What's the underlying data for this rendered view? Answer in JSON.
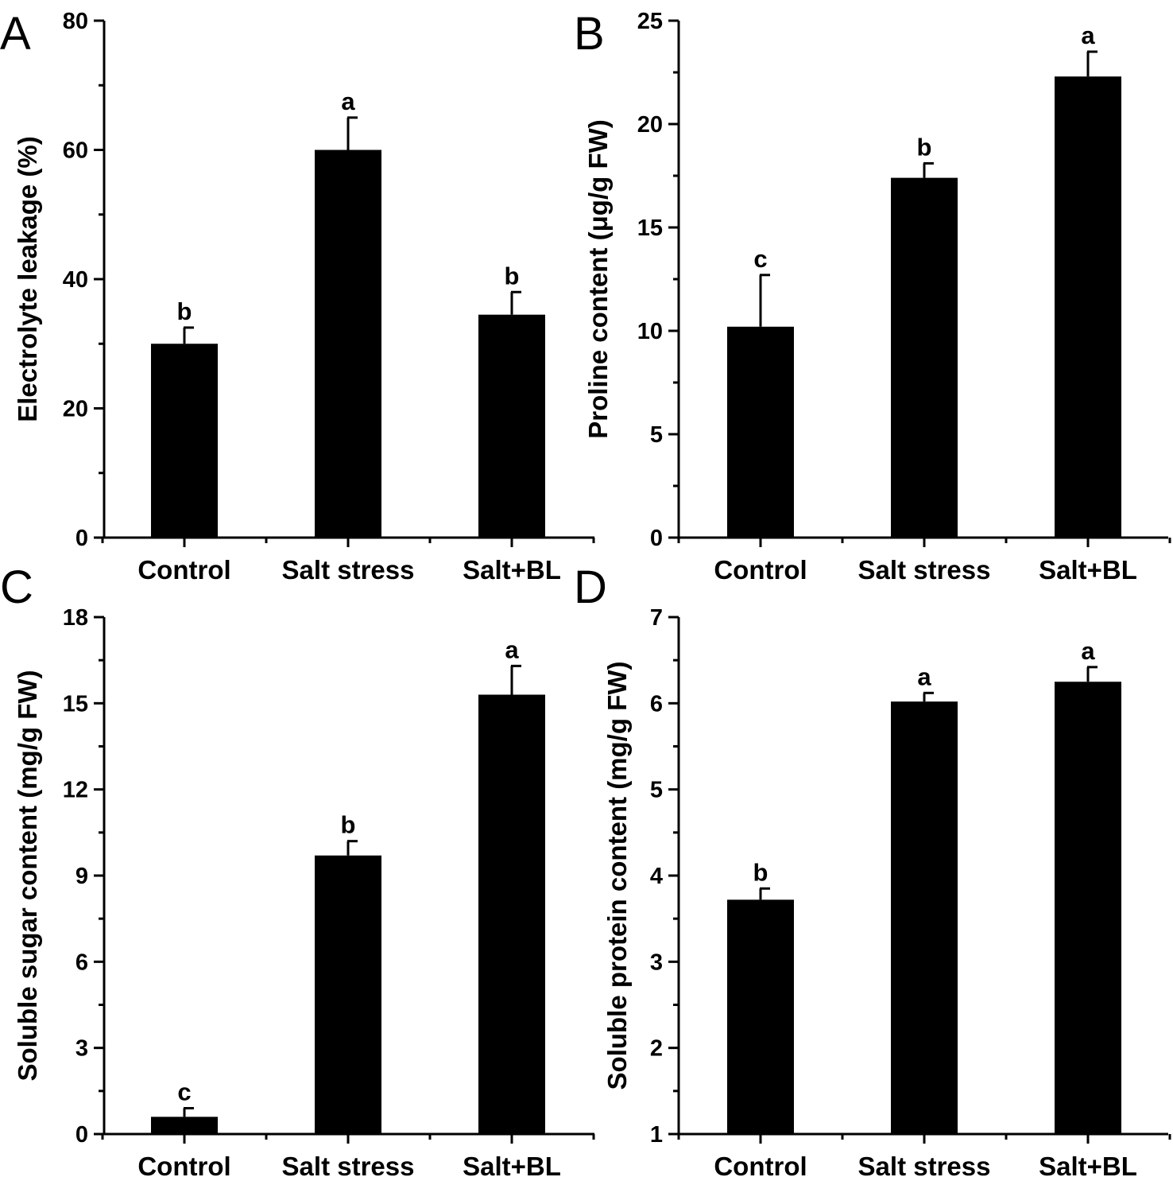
{
  "chart_data": [
    {
      "panel": "A",
      "type": "bar",
      "title": "",
      "xlabel": "",
      "ylabel": "Electrolyte leakage (%)",
      "categories": [
        "Control",
        "Salt stress",
        "Salt+BL"
      ],
      "values": [
        30,
        60,
        34.5
      ],
      "errors": [
        2.5,
        5,
        3.5
      ],
      "significance": [
        "b",
        "a",
        "b"
      ],
      "ylim": [
        0,
        80
      ],
      "yticks": [
        0,
        20,
        40,
        60,
        80
      ],
      "ytick_labels": [
        "0",
        "20",
        "40",
        "60",
        "80"
      ],
      "grid": false,
      "bar_color": "#000000"
    },
    {
      "panel": "B",
      "type": "bar",
      "title": "",
      "xlabel": "",
      "ylabel": "Proline content (μg/g FW)",
      "categories": [
        "Control",
        "Salt stress",
        "Salt+BL"
      ],
      "values": [
        10.2,
        17.4,
        22.3
      ],
      "errors": [
        2.5,
        0.7,
        1.2
      ],
      "significance": [
        "c",
        "b",
        "a"
      ],
      "ylim": [
        0,
        25
      ],
      "yticks": [
        0,
        5,
        10,
        15,
        20,
        25
      ],
      "ytick_labels": [
        "0",
        "5",
        "10",
        "15",
        "20",
        "25"
      ],
      "grid": false,
      "bar_color": "#000000"
    },
    {
      "panel": "C",
      "type": "bar",
      "title": "",
      "xlabel": "",
      "ylabel": "Soluble sugar content (mg/g FW)",
      "categories": [
        "Control",
        "Salt stress",
        "Salt+BL"
      ],
      "values": [
        0.6,
        9.7,
        15.3
      ],
      "errors": [
        0.3,
        0.5,
        1.0
      ],
      "significance": [
        "c",
        "b",
        "a"
      ],
      "ylim": [
        0,
        18
      ],
      "yticks": [
        0,
        3,
        6,
        9,
        12,
        15,
        18
      ],
      "ytick_labels": [
        "0",
        "3",
        "6",
        "9",
        "12",
        "15",
        "18"
      ],
      "grid": false,
      "bar_color": "#000000"
    },
    {
      "panel": "D",
      "type": "bar",
      "title": "",
      "xlabel": "",
      "ylabel": "Soluble protein content (mg/g FW)",
      "categories": [
        "Control",
        "Salt stress",
        "Salt+BL"
      ],
      "values": [
        3.72,
        6.02,
        6.25
      ],
      "errors": [
        0.13,
        0.1,
        0.17
      ],
      "significance": [
        "b",
        "a",
        "a"
      ],
      "ylim": [
        1,
        7
      ],
      "yticks": [
        1,
        2,
        3,
        4,
        5,
        6,
        7
      ],
      "ytick_labels": [
        "1",
        "2",
        "3",
        "4",
        "5",
        "6",
        "7"
      ],
      "grid": false,
      "bar_color": "#000000"
    }
  ]
}
